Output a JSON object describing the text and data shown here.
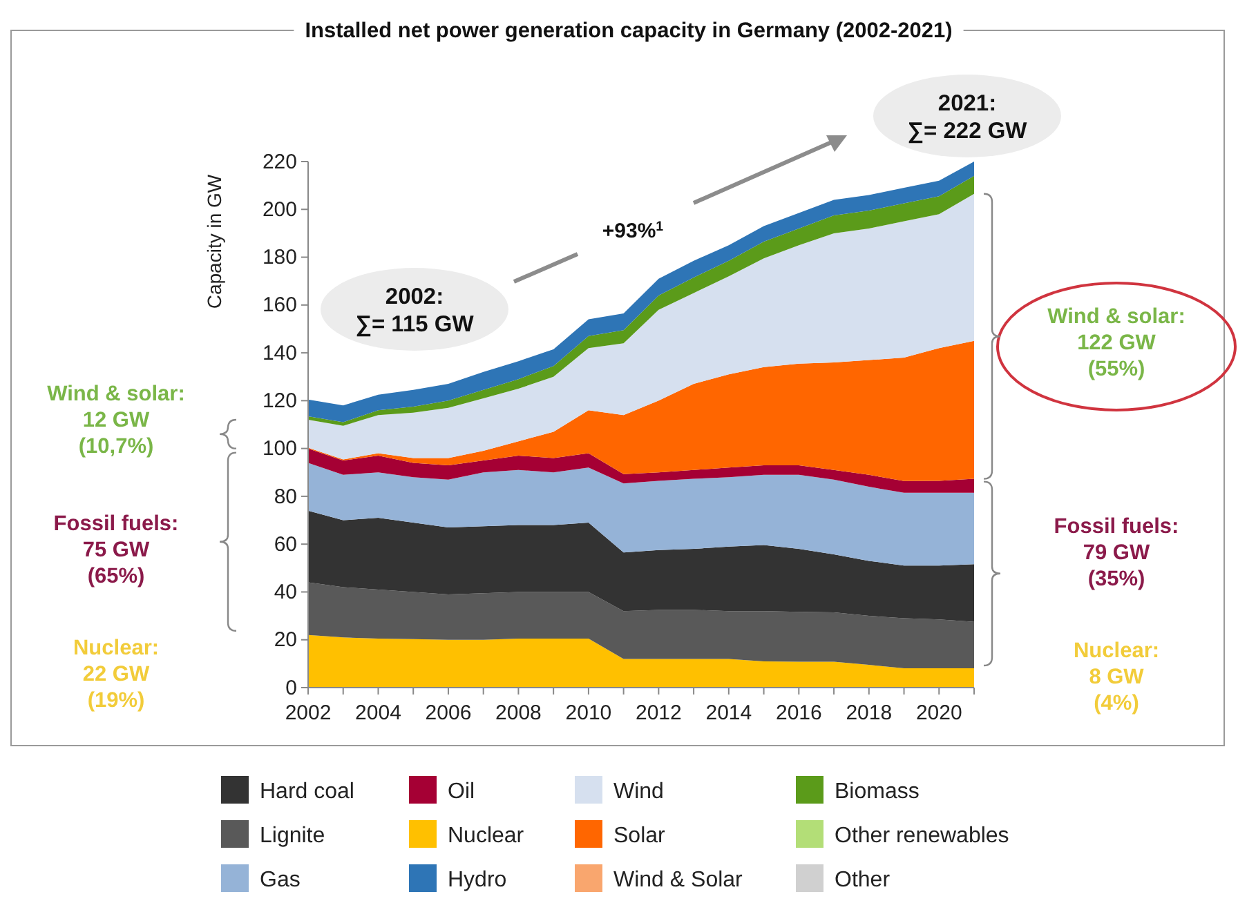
{
  "chart_data": {
    "type": "area",
    "stacked": true,
    "title": "Installed net power generation capacity in Germany (2002-2021)",
    "ylabel": "Capacity in GW",
    "x": [
      2002,
      2003,
      2004,
      2005,
      2006,
      2007,
      2008,
      2009,
      2010,
      2011,
      2012,
      2013,
      2014,
      2015,
      2016,
      2017,
      2018,
      2019,
      2020,
      2021
    ],
    "xlim": [
      2002,
      2021
    ],
    "xticks": [
      2002,
      {
        "value": 2003,
        "label": null
      },
      2004,
      {
        "value": 2005,
        "label": null
      },
      2006,
      {
        "value": 2007,
        "label": null
      },
      2008,
      {
        "value": 2009,
        "label": null
      },
      2010,
      {
        "value": 2011,
        "label": null
      },
      2012,
      {
        "value": 2013,
        "label": null
      },
      2014,
      {
        "value": 2015,
        "label": null
      },
      2016,
      {
        "value": 2017,
        "label": null
      },
      2018,
      {
        "value": 2019,
        "label": null
      },
      2020,
      {
        "value": 2021,
        "label": null
      }
    ],
    "ylim": [
      0,
      220
    ],
    "yticks": [
      0,
      20,
      40,
      60,
      80,
      100,
      120,
      140,
      160,
      180,
      200,
      220
    ],
    "grid": false,
    "legend": "bottom",
    "series": [
      {
        "name": "Nuclear",
        "color": "#ffc000",
        "values": [
          22,
          21,
          20.5,
          20.3,
          20,
          20,
          20.5,
          20.5,
          20.5,
          12,
          12,
          12,
          12,
          11,
          10.8,
          10.8,
          9.5,
          8.1,
          8.1,
          8.1
        ]
      },
      {
        "name": "Lignite",
        "color": "#595959",
        "values": [
          22,
          21,
          20.5,
          19.7,
          19,
          19.5,
          19.5,
          19.5,
          19.5,
          20,
          20.5,
          20.5,
          20,
          21,
          20.9,
          20.7,
          20.5,
          20.9,
          20.4,
          19.4
        ]
      },
      {
        "name": "Hard coal",
        "color": "#333333",
        "values": [
          30,
          28,
          30,
          29,
          28,
          28,
          28,
          28,
          29,
          24.5,
          25,
          25.5,
          27,
          27.6,
          26.3,
          24.2,
          23,
          22,
          22.5,
          24.1
        ]
      },
      {
        "name": "Gas",
        "color": "#95b3d7",
        "values": [
          20,
          19,
          19,
          19,
          20,
          22.5,
          23,
          22,
          23,
          28.9,
          29,
          29.3,
          29,
          29.4,
          31,
          31.3,
          31,
          30.5,
          30.5,
          29.9
        ]
      },
      {
        "name": "Oil",
        "color": "#a50034",
        "values": [
          6,
          6,
          7,
          6,
          6,
          5,
          6,
          6,
          6,
          3.9,
          3.5,
          3.7,
          4,
          4,
          4,
          4,
          5,
          4.9,
          5,
          5.8
        ]
      },
      {
        "name": "Solar",
        "color": "#ff6600",
        "values": [
          0.3,
          0.4,
          1,
          2,
          3,
          4,
          6,
          11,
          18,
          24.7,
          30,
          36,
          39,
          41,
          42.5,
          45,
          48,
          51.6,
          55.5,
          57.7
        ]
      },
      {
        "name": "Wind",
        "color": "#d6e0ef",
        "values": [
          11.7,
          14.1,
          16,
          19,
          21,
          22,
          22,
          23,
          26,
          30,
          38,
          38,
          41,
          45.5,
          49.5,
          54,
          55,
          57,
          56,
          61.5
        ]
      },
      {
        "name": "Biomass",
        "color": "#5b9b1a",
        "values": [
          1.5,
          1.5,
          2,
          2.5,
          3,
          3.5,
          4,
          4.5,
          5,
          5.5,
          6,
          6.5,
          6.5,
          7,
          7,
          7.5,
          7.5,
          7.5,
          7.5,
          7.5
        ]
      },
      {
        "name": "Hydro",
        "color": "#2e75b6",
        "values": [
          7,
          7,
          6.5,
          7,
          7,
          7.5,
          7.5,
          7,
          7,
          7,
          7,
          7,
          6.5,
          6.5,
          6.5,
          6.5,
          6.5,
          6.5,
          6.5,
          6
        ]
      },
      {
        "name": "Other renewables",
        "color": "#b3de77",
        "values": [
          null,
          null,
          null,
          null,
          null,
          null,
          null,
          null,
          null,
          null,
          null,
          null,
          null,
          null,
          null,
          null,
          null,
          null,
          null,
          null
        ]
      },
      {
        "name": "Wind & Solar",
        "color": "#f9a66e",
        "values": [
          null,
          null,
          null,
          null,
          null,
          null,
          null,
          null,
          null,
          null,
          null,
          null,
          null,
          null,
          null,
          null,
          null,
          null,
          null,
          null
        ]
      },
      {
        "name": "Other",
        "color": "#d0d0d0",
        "values": [
          null,
          null,
          null,
          null,
          null,
          null,
          null,
          null,
          null,
          null,
          null,
          null,
          null,
          null,
          null,
          null,
          null,
          null,
          null,
          null
        ]
      }
    ],
    "annotations": [
      "2002:\n∑= 115 GW",
      "2021:\n∑= 222 GW",
      "+93%$^{1}$",
      "Wind & solar:\n12 GW\n(10,7%)",
      "Fossil fuels:\n75 GW\n(65%)",
      "Nuclear:\n22 GW\n(19%)",
      "Wind & solar:\n122 GW\n(55%)",
      "Fossil fuels:\n79 GW\n(35%)",
      "Nuclear:\n8 GW\n(4%)"
    ]
  }
}
